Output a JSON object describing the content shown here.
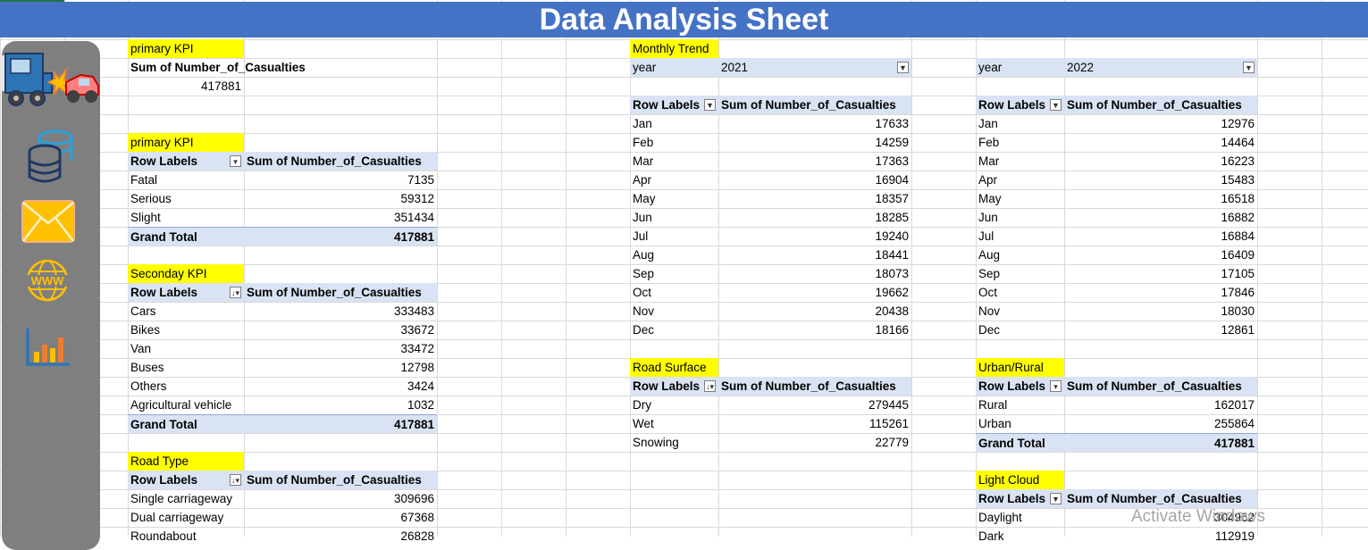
{
  "title": "Data Analysis Sheet",
  "sidebar": {
    "icons": [
      "truck-crash-icon",
      "database-icon",
      "mail-icon",
      "www-globe-icon",
      "bar-chart-icon"
    ]
  },
  "primary_kpi_1": {
    "label": "primary KPI",
    "header": "Sum of Number_of_Casualties",
    "value": "417881"
  },
  "primary_kpi_2": {
    "label": "primary KPI",
    "col1": "Row Labels",
    "col2": "Sum of Number_of_Casualties",
    "rows": [
      {
        "label": "Fatal",
        "value": "7135"
      },
      {
        "label": "Serious",
        "value": "59312"
      },
      {
        "label": "Slight",
        "value": "351434"
      }
    ],
    "total_label": "Grand Total",
    "total_value": "417881"
  },
  "secondary_kpi": {
    "label": "Seconday KPI",
    "col1": "Row Labels",
    "col2": "Sum of Number_of_Casualties",
    "rows": [
      {
        "label": "Cars",
        "value": "333483"
      },
      {
        "label": "Bikes",
        "value": "33672"
      },
      {
        "label": "Van",
        "value": "33472"
      },
      {
        "label": "Buses",
        "value": "12798"
      },
      {
        "label": "Others",
        "value": "3424"
      },
      {
        "label": "Agricultural vehicle",
        "value": "1032"
      }
    ],
    "total_label": "Grand Total",
    "total_value": "417881"
  },
  "road_type": {
    "label": "Road Type",
    "col1": "Row Labels",
    "col2": "Sum of Number_of_Casualties",
    "rows": [
      {
        "label": "Single carriageway",
        "value": "309696"
      },
      {
        "label": "Dual carriageway",
        "value": "67368"
      },
      {
        "label": "Roundabout",
        "value": "26828"
      }
    ]
  },
  "monthly_2021": {
    "label": "Monthly Trend",
    "filter_label": "year",
    "filter_value": "2021",
    "col1": "Row Labels",
    "col2": "Sum of Number_of_Casualties",
    "rows": [
      {
        "label": "Jan",
        "value": "17633"
      },
      {
        "label": "Feb",
        "value": "14259"
      },
      {
        "label": "Mar",
        "value": "17363"
      },
      {
        "label": "Apr",
        "value": "16904"
      },
      {
        "label": "May",
        "value": "18357"
      },
      {
        "label": "Jun",
        "value": "18285"
      },
      {
        "label": "Jul",
        "value": "19240"
      },
      {
        "label": "Aug",
        "value": "18441"
      },
      {
        "label": "Sep",
        "value": "18073"
      },
      {
        "label": "Oct",
        "value": "19662"
      },
      {
        "label": "Nov",
        "value": "20438"
      },
      {
        "label": "Dec",
        "value": "18166"
      }
    ]
  },
  "monthly_2022": {
    "filter_label": "year",
    "filter_value": "2022",
    "col1": "Row Labels",
    "col2": "Sum of Number_of_Casualties",
    "rows": [
      {
        "label": "Jan",
        "value": "12976"
      },
      {
        "label": "Feb",
        "value": "14464"
      },
      {
        "label": "Mar",
        "value": "16223"
      },
      {
        "label": "Apr",
        "value": "15483"
      },
      {
        "label": "May",
        "value": "16518"
      },
      {
        "label": "Jun",
        "value": "16882"
      },
      {
        "label": "Jul",
        "value": "16884"
      },
      {
        "label": "Aug",
        "value": "16409"
      },
      {
        "label": "Sep",
        "value": "17105"
      },
      {
        "label": "Oct",
        "value": "17846"
      },
      {
        "label": "Nov",
        "value": "18030"
      },
      {
        "label": "Dec",
        "value": "12861"
      }
    ]
  },
  "road_surface": {
    "label": "Road Surface",
    "col1": "Row Labels",
    "col2": "Sum of Number_of_Casualties",
    "rows": [
      {
        "label": "Dry",
        "value": "279445"
      },
      {
        "label": "Wet",
        "value": "115261"
      },
      {
        "label": "Snowing",
        "value": "22779"
      }
    ]
  },
  "urban_rural": {
    "label": "Urban/Rural",
    "col1": "Row Labels",
    "col2": "Sum of Number_of_Casualties",
    "rows": [
      {
        "label": "Rural",
        "value": "162017"
      },
      {
        "label": "Urban",
        "value": "255864"
      }
    ],
    "total_label": "Grand Total",
    "total_value": "417881"
  },
  "light_cloud": {
    "label": "Light Cloud",
    "col1": "Row Labels",
    "col2": "Sum of Number_of_Casualties",
    "rows": [
      {
        "label": "Daylight",
        "value": "304962"
      },
      {
        "label": "Dark",
        "value": "112919"
      }
    ]
  },
  "watermark": "Activate Windows"
}
